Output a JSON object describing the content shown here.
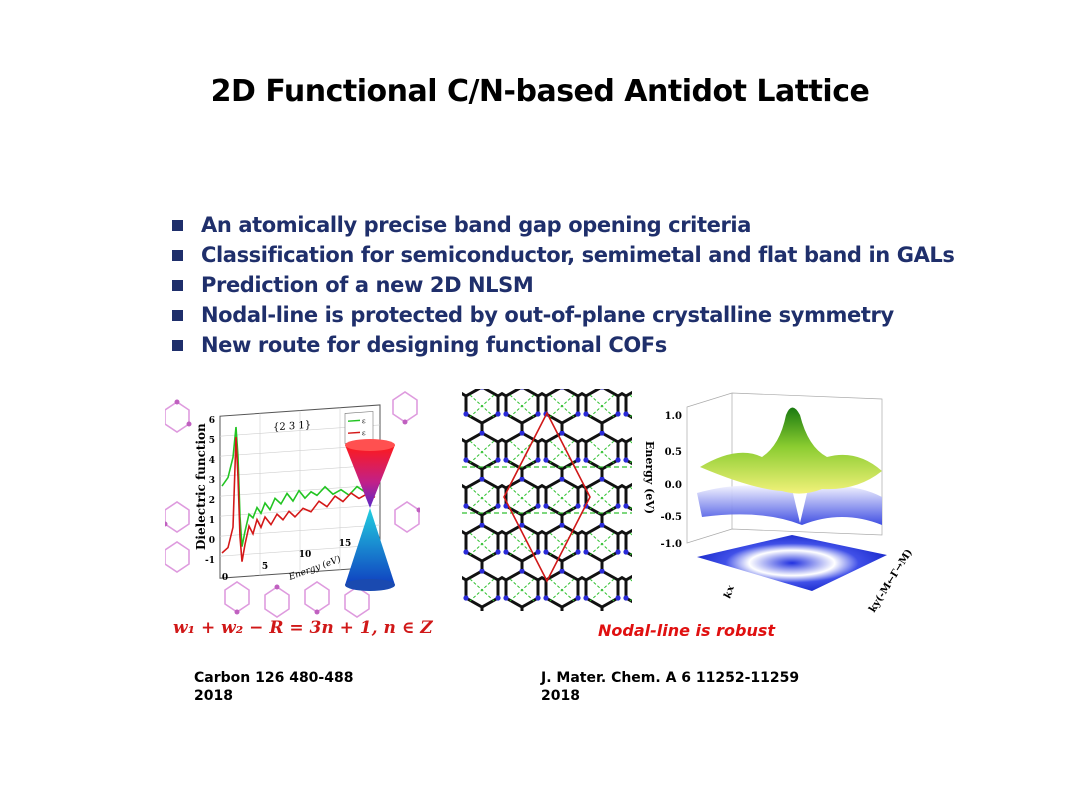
{
  "slide": {
    "title": "2D Functional C/N-based Antidot Lattice",
    "bullets": [
      "An atomically precise band gap opening criteria",
      "Classification for semiconductor, semimetal and flat band in GALs",
      "Prediction of a new 2D NLSM",
      "Nodal-line is protected by out-of-plane crystalline symmetry",
      "New route for designing functional COFs"
    ]
  },
  "figure_left": {
    "ylabel": "Dielectric function",
    "xlabel": "Energy (eV)",
    "annotation": "{2 3 1}",
    "yticks": [
      "6",
      "5",
      "4",
      "3",
      "2",
      "1",
      "0",
      "-1"
    ],
    "xticks": [
      "0",
      "5",
      "10",
      "15"
    ],
    "legend_labels": [
      "ε",
      "ε"
    ],
    "formula": "w₁ + w₂ − R = 3n + 1,  n ∈ Z"
  },
  "figure_right": {
    "zlabel": "Energy (eV)",
    "zticks": [
      "1.0",
      "0.5",
      "0.0",
      "-0.5",
      "-1.0"
    ],
    "kx_label": "kx",
    "ky_label": "ky(-M←Γ→M)",
    "caption": "Nodal-line is robust"
  },
  "references": [
    {
      "line1": "Carbon 126 480-488",
      "line2": "2018"
    },
    {
      "line1": "J. Mater. Chem. A 6 11252-11259",
      "line2": "2018"
    }
  ],
  "colors": {
    "title": "#000000",
    "bullets": "#1f2f6b",
    "accent_red": "#e01010"
  }
}
